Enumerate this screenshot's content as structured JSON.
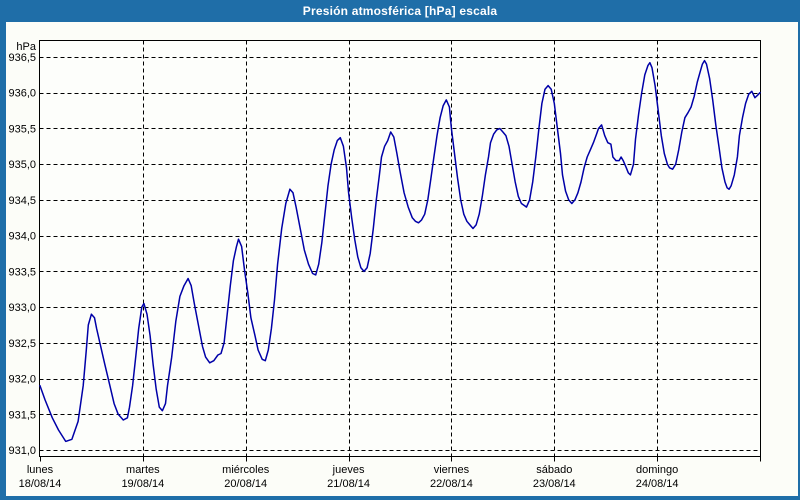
{
  "window": {
    "title": "Presión atmosférica [hPa] escala"
  },
  "colors": {
    "titlebar": "#1f6ea8",
    "frame": "#1f6ea8",
    "background": "#fcfdf8",
    "plot_background": "#fdfefb",
    "grid": "#000000",
    "axis_box": "#000000",
    "line": "#0000a8",
    "title_text": "#ffffff",
    "label_text": "#000000"
  },
  "chart_data": {
    "type": "line",
    "title": "Presión atmosférica [hPa] escala",
    "ylabel": "hPa",
    "xlabel": "",
    "legend": "none",
    "grid": "dashed black; horizontal every 0.5 hPa, vertical at each day start",
    "y_axis": {
      "unit_label": "hPa",
      "min": 931.0,
      "max": 936.5,
      "step": 0.5,
      "tick_labels": [
        "936,5",
        "936,0",
        "935,5",
        "935,0",
        "934,5",
        "934,0",
        "933,5",
        "933,0",
        "932,5",
        "932,0",
        "931,5",
        "931,0"
      ]
    },
    "x_axis": {
      "span_days": 7,
      "categories": [
        {
          "day": "lunes",
          "date": "18/08/14"
        },
        {
          "day": "martes",
          "date": "19/08/14"
        },
        {
          "day": "miércoles",
          "date": "20/08/14"
        },
        {
          "day": "jueves",
          "date": "21/08/14"
        },
        {
          "day": "viernes",
          "date": "22/08/14"
        },
        {
          "day": "sábado",
          "date": "23/08/14"
        },
        {
          "day": "domingo",
          "date": "24/08/14"
        }
      ]
    },
    "series": [
      {
        "name": "Presión atmosférica",
        "unit": "hPa",
        "color": "#0000a8",
        "points_day_hpa": [
          [
            0.0,
            931.9
          ],
          [
            0.05,
            931.7
          ],
          [
            0.12,
            931.45
          ],
          [
            0.18,
            931.28
          ],
          [
            0.25,
            931.12
          ],
          [
            0.31,
            931.15
          ],
          [
            0.37,
            931.4
          ],
          [
            0.42,
            931.9
          ],
          [
            0.45,
            932.4
          ],
          [
            0.47,
            932.75
          ],
          [
            0.5,
            932.9
          ],
          [
            0.53,
            932.85
          ],
          [
            0.55,
            932.7
          ],
          [
            0.59,
            932.45
          ],
          [
            0.63,
            932.2
          ],
          [
            0.68,
            931.9
          ],
          [
            0.72,
            931.65
          ],
          [
            0.76,
            931.5
          ],
          [
            0.81,
            931.42
          ],
          [
            0.85,
            931.45
          ],
          [
            0.87,
            931.6
          ],
          [
            0.9,
            931.9
          ],
          [
            0.93,
            932.3
          ],
          [
            0.96,
            932.7
          ],
          [
            0.99,
            933.0
          ],
          [
            1.01,
            933.05
          ],
          [
            1.04,
            932.9
          ],
          [
            1.07,
            932.6
          ],
          [
            1.1,
            932.2
          ],
          [
            1.13,
            931.85
          ],
          [
            1.16,
            931.6
          ],
          [
            1.19,
            931.55
          ],
          [
            1.22,
            931.65
          ],
          [
            1.24,
            931.9
          ],
          [
            1.28,
            932.3
          ],
          [
            1.32,
            932.8
          ],
          [
            1.36,
            933.15
          ],
          [
            1.4,
            933.3
          ],
          [
            1.44,
            933.4
          ],
          [
            1.47,
            933.3
          ],
          [
            1.5,
            933.05
          ],
          [
            1.54,
            932.75
          ],
          [
            1.58,
            932.45
          ],
          [
            1.61,
            932.3
          ],
          [
            1.65,
            932.22
          ],
          [
            1.69,
            932.25
          ],
          [
            1.73,
            932.33
          ],
          [
            1.76,
            932.35
          ],
          [
            1.79,
            932.5
          ],
          [
            1.82,
            932.9
          ],
          [
            1.85,
            933.3
          ],
          [
            1.88,
            933.65
          ],
          [
            1.91,
            933.85
          ],
          [
            1.93,
            933.95
          ],
          [
            1.96,
            933.85
          ],
          [
            1.99,
            933.5
          ],
          [
            2.02,
            933.2
          ],
          [
            2.05,
            932.85
          ],
          [
            2.09,
            932.6
          ],
          [
            2.12,
            932.4
          ],
          [
            2.16,
            932.27
          ],
          [
            2.19,
            932.25
          ],
          [
            2.22,
            932.4
          ],
          [
            2.25,
            932.7
          ],
          [
            2.28,
            933.1
          ],
          [
            2.31,
            933.6
          ],
          [
            2.35,
            934.1
          ],
          [
            2.39,
            934.45
          ],
          [
            2.43,
            934.65
          ],
          [
            2.46,
            934.6
          ],
          [
            2.49,
            934.4
          ],
          [
            2.53,
            934.1
          ],
          [
            2.57,
            933.8
          ],
          [
            2.61,
            933.6
          ],
          [
            2.65,
            933.47
          ],
          [
            2.68,
            933.45
          ],
          [
            2.71,
            933.6
          ],
          [
            2.74,
            933.9
          ],
          [
            2.77,
            934.3
          ],
          [
            2.8,
            934.7
          ],
          [
            2.83,
            935.0
          ],
          [
            2.86,
            935.2
          ],
          [
            2.89,
            935.33
          ],
          [
            2.92,
            935.37
          ],
          [
            2.95,
            935.25
          ],
          [
            2.98,
            934.95
          ],
          [
            3.0,
            934.6
          ],
          [
            3.03,
            934.25
          ],
          [
            3.06,
            933.95
          ],
          [
            3.09,
            933.7
          ],
          [
            3.12,
            933.55
          ],
          [
            3.15,
            933.5
          ],
          [
            3.18,
            933.55
          ],
          [
            3.21,
            933.75
          ],
          [
            3.24,
            934.1
          ],
          [
            3.27,
            934.5
          ],
          [
            3.3,
            934.85
          ],
          [
            3.32,
            935.1
          ],
          [
            3.35,
            935.25
          ],
          [
            3.38,
            935.33
          ],
          [
            3.41,
            935.45
          ],
          [
            3.44,
            935.38
          ],
          [
            3.47,
            935.15
          ],
          [
            3.5,
            934.9
          ],
          [
            3.54,
            934.6
          ],
          [
            3.58,
            934.4
          ],
          [
            3.62,
            934.25
          ],
          [
            3.65,
            934.2
          ],
          [
            3.68,
            934.18
          ],
          [
            3.71,
            934.22
          ],
          [
            3.74,
            934.3
          ],
          [
            3.77,
            934.5
          ],
          [
            3.8,
            934.8
          ],
          [
            3.83,
            935.1
          ],
          [
            3.86,
            935.4
          ],
          [
            3.89,
            935.65
          ],
          [
            3.92,
            935.82
          ],
          [
            3.95,
            935.9
          ],
          [
            3.98,
            935.8
          ],
          [
            4.0,
            935.5
          ],
          [
            4.03,
            935.15
          ],
          [
            4.06,
            934.8
          ],
          [
            4.09,
            934.5
          ],
          [
            4.12,
            934.3
          ],
          [
            4.15,
            934.2
          ],
          [
            4.18,
            934.15
          ],
          [
            4.21,
            934.1
          ],
          [
            4.24,
            934.15
          ],
          [
            4.27,
            934.3
          ],
          [
            4.3,
            934.55
          ],
          [
            4.33,
            934.85
          ],
          [
            4.36,
            935.1
          ],
          [
            4.38,
            935.3
          ],
          [
            4.41,
            935.42
          ],
          [
            4.44,
            935.48
          ],
          [
            4.47,
            935.5
          ],
          [
            4.5,
            935.45
          ],
          [
            4.53,
            935.4
          ],
          [
            4.56,
            935.25
          ],
          [
            4.59,
            935.0
          ],
          [
            4.62,
            934.75
          ],
          [
            4.65,
            934.55
          ],
          [
            4.68,
            934.45
          ],
          [
            4.71,
            934.42
          ],
          [
            4.73,
            934.4
          ],
          [
            4.76,
            934.5
          ],
          [
            4.79,
            934.75
          ],
          [
            4.82,
            935.1
          ],
          [
            4.85,
            935.5
          ],
          [
            4.88,
            935.85
          ],
          [
            4.91,
            936.05
          ],
          [
            4.94,
            936.1
          ],
          [
            4.97,
            936.05
          ],
          [
            5.0,
            935.85
          ],
          [
            5.03,
            935.5
          ],
          [
            5.06,
            935.15
          ],
          [
            5.08,
            934.85
          ],
          [
            5.11,
            934.62
          ],
          [
            5.14,
            934.5
          ],
          [
            5.17,
            934.45
          ],
          [
            5.2,
            934.5
          ],
          [
            5.23,
            934.6
          ],
          [
            5.26,
            934.75
          ],
          [
            5.29,
            934.95
          ],
          [
            5.32,
            935.1
          ],
          [
            5.35,
            935.2
          ],
          [
            5.38,
            935.3
          ],
          [
            5.41,
            935.42
          ],
          [
            5.43,
            935.5
          ],
          [
            5.46,
            935.55
          ],
          [
            5.49,
            935.4
          ],
          [
            5.52,
            935.3
          ],
          [
            5.55,
            935.28
          ],
          [
            5.57,
            935.1
          ],
          [
            5.6,
            935.05
          ],
          [
            5.63,
            935.05
          ],
          [
            5.65,
            935.1
          ],
          [
            5.67,
            935.05
          ],
          [
            5.7,
            934.95
          ],
          [
            5.72,
            934.88
          ],
          [
            5.74,
            934.85
          ],
          [
            5.77,
            935.0
          ],
          [
            5.79,
            935.35
          ],
          [
            5.82,
            935.7
          ],
          [
            5.85,
            936.0
          ],
          [
            5.88,
            936.25
          ],
          [
            5.91,
            936.38
          ],
          [
            5.93,
            936.42
          ],
          [
            5.95,
            936.35
          ],
          [
            5.98,
            936.1
          ],
          [
            6.01,
            935.75
          ],
          [
            6.04,
            935.4
          ],
          [
            6.07,
            935.15
          ],
          [
            6.1,
            935.0
          ],
          [
            6.12,
            934.95
          ],
          [
            6.15,
            934.93
          ],
          [
            6.18,
            935.0
          ],
          [
            6.21,
            935.2
          ],
          [
            6.24,
            935.45
          ],
          [
            6.27,
            935.65
          ],
          [
            6.3,
            935.72
          ],
          [
            6.33,
            935.8
          ],
          [
            6.36,
            935.95
          ],
          [
            6.39,
            936.15
          ],
          [
            6.42,
            936.3
          ],
          [
            6.44,
            936.4
          ],
          [
            6.46,
            936.45
          ],
          [
            6.48,
            936.4
          ],
          [
            6.51,
            936.2
          ],
          [
            6.54,
            935.9
          ],
          [
            6.57,
            935.55
          ],
          [
            6.6,
            935.25
          ],
          [
            6.63,
            934.95
          ],
          [
            6.66,
            934.75
          ],
          [
            6.68,
            934.67
          ],
          [
            6.7,
            934.65
          ],
          [
            6.72,
            934.7
          ],
          [
            6.75,
            934.85
          ],
          [
            6.78,
            935.1
          ],
          [
            6.8,
            935.4
          ],
          [
            6.83,
            935.65
          ],
          [
            6.86,
            935.85
          ],
          [
            6.89,
            935.98
          ],
          [
            6.92,
            936.02
          ],
          [
            6.95,
            935.93
          ],
          [
            6.98,
            935.97
          ],
          [
            7.0,
            936.0
          ]
        ]
      }
    ]
  }
}
